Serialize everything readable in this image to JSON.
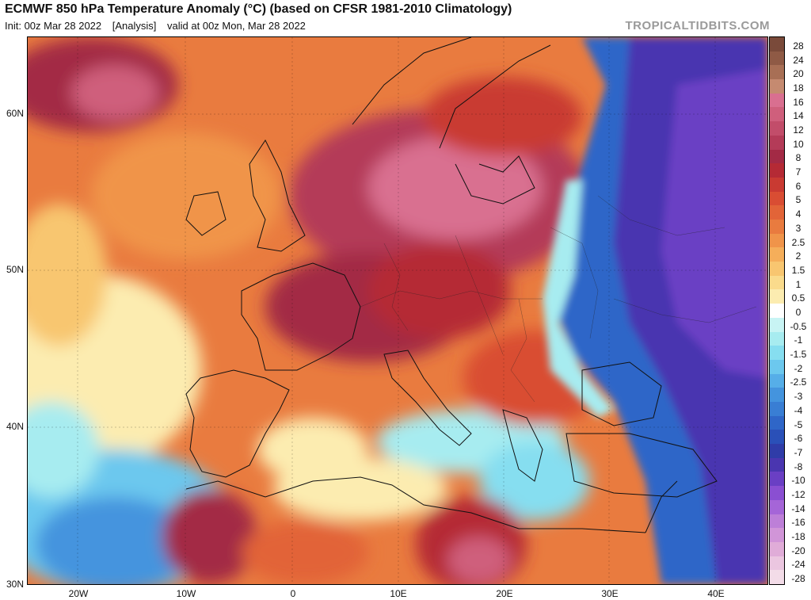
{
  "header": {
    "title": "ECMWF 850 hPa Temperature Anomaly (°C) (based on CFSR 1981-2010 Climatology)",
    "init": "Init: 00z Mar 28 2022",
    "analysis": "[Analysis]",
    "valid": "valid at 00z Mon, Mar 28 2022",
    "watermark": "TROPICALTIDBITS.COM"
  },
  "map": {
    "lat_labels": [
      "60N",
      "50N",
      "40N",
      "30N"
    ],
    "lon_labels": [
      "20W",
      "10W",
      "0",
      "10E",
      "20E",
      "30E",
      "40E"
    ]
  },
  "colorbar": {
    "labels": [
      "28",
      "24",
      "20",
      "18",
      "16",
      "14",
      "12",
      "10",
      "8",
      "7",
      "6",
      "5",
      "4",
      "3",
      "2.5",
      "2",
      "1.5",
      "1",
      "0.5",
      "0",
      "-0.5",
      "-1",
      "-1.5",
      "-2",
      "-2.5",
      "-3",
      "-4",
      "-5",
      "-6",
      "-7",
      "-8",
      "-10",
      "-12",
      "-14",
      "-16",
      "-18",
      "-20",
      "-24",
      "-28"
    ],
    "colors": [
      "#7a4a3a",
      "#8f5a45",
      "#a86f55",
      "#c58a70",
      "#d96f90",
      "#cf5f7c",
      "#c24d6a",
      "#b43b58",
      "#a32a45",
      "#b52a35",
      "#c93a32",
      "#d94d33",
      "#e26438",
      "#e97b3f",
      "#f0944a",
      "#f5ae5a",
      "#f8c670",
      "#fadb8c",
      "#fcecb0",
      "#ffffff",
      "#c8f4f4",
      "#a7ecf0",
      "#86def0",
      "#6cc8ee",
      "#56aee8",
      "#4494de",
      "#397ed4",
      "#2f66c8",
      "#2a50b8",
      "#2f3ca8",
      "#4a36b0",
      "#6a3fc4",
      "#8a4fd2",
      "#a565d8",
      "#bd7fd8",
      "#d195d8",
      "#e0acd8",
      "#ebc6e0",
      "#f3dce8"
    ]
  }
}
